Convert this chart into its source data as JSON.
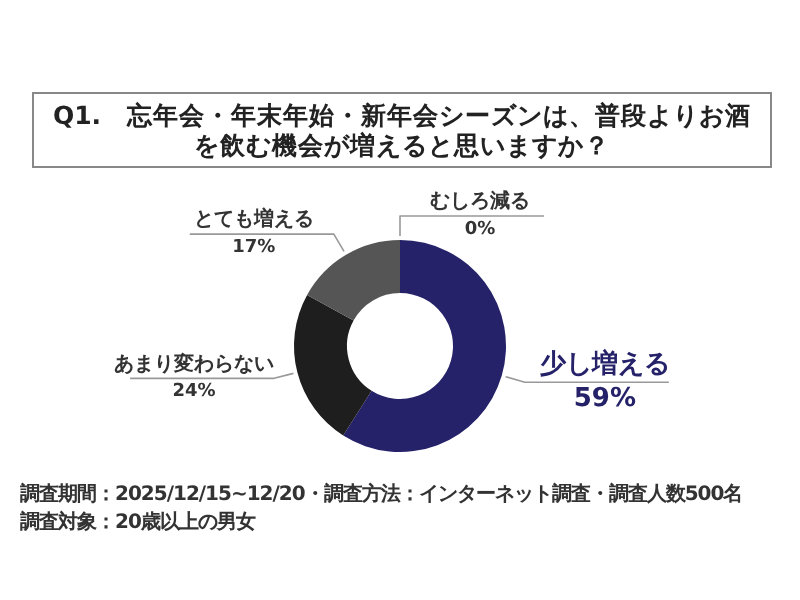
{
  "chart_data": {
    "type": "donut",
    "title": "Q1.　忘年会・年末年始・新年会シーズンは、普段よりお酒を飲む機会が増えると思いますか？",
    "categories": [
      "少し増える",
      "あまり変わらない",
      "とても増える",
      "むしろ減る"
    ],
    "values": [
      59,
      24,
      17,
      0
    ],
    "colors": [
      "#25226a",
      "#1e1e1e",
      "#555555",
      "#9a9a9a"
    ],
    "value_labels": [
      "59%",
      "24%",
      "17%",
      "0%"
    ],
    "annotations": [
      "調査期間：2025/12/15~12/20・調査方法：インターネット調査・調査人数500名",
      "調査対象：20歳以上の男女"
    ]
  }
}
